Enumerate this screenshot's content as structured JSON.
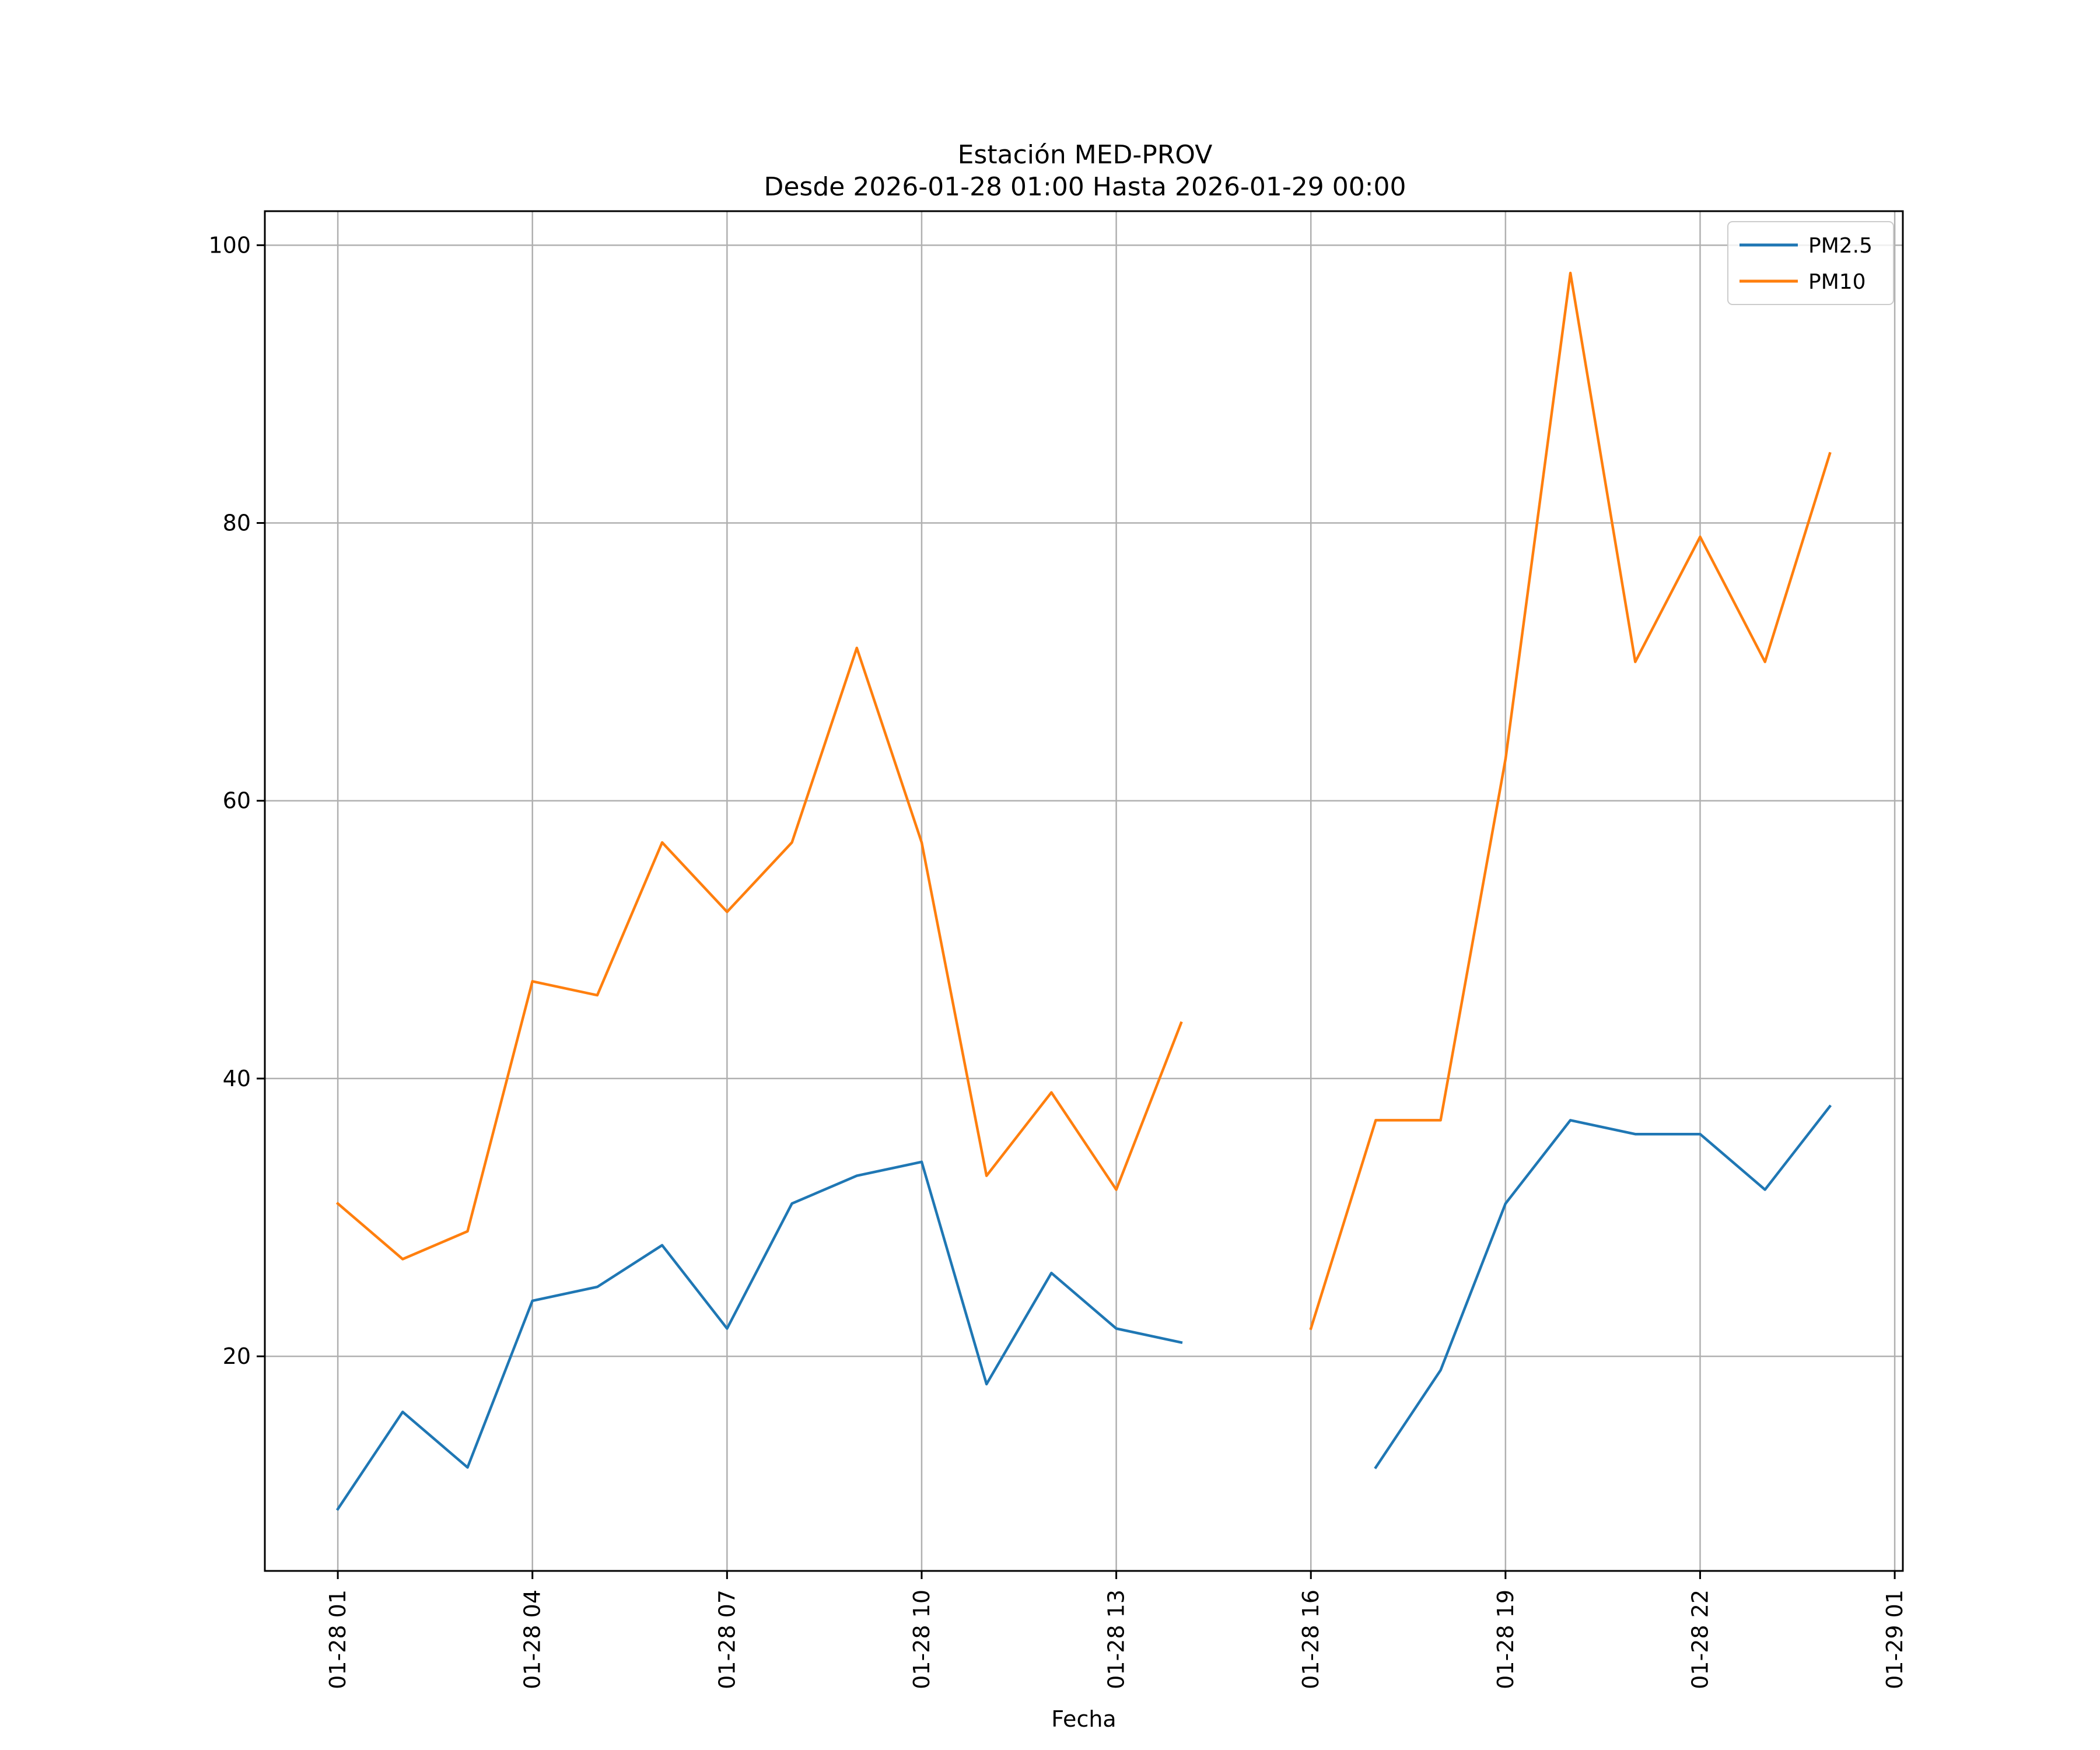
{
  "chart_data": {
    "type": "line",
    "title_line1": "Estación MED-PROV",
    "title_line2": "Desde 2026-01-28 01:00 Hasta 2026-01-29 00:00",
    "xlabel": "Fecha",
    "ylabel": "",
    "x_hours": [
      1,
      2,
      3,
      4,
      5,
      6,
      7,
      8,
      9,
      10,
      11,
      12,
      13,
      14,
      15,
      16,
      17,
      18,
      19,
      20,
      21,
      22,
      23,
      24
    ],
    "xlim": [
      -0.125,
      25.125
    ],
    "ylim": [
      4.55,
      102.45
    ],
    "x_ticks": [
      {
        "hour": 1,
        "label": "01-28 01"
      },
      {
        "hour": 4,
        "label": "01-28 04"
      },
      {
        "hour": 7,
        "label": "01-28 07"
      },
      {
        "hour": 10,
        "label": "01-28 10"
      },
      {
        "hour": 13,
        "label": "01-28 13"
      },
      {
        "hour": 16,
        "label": "01-28 16"
      },
      {
        "hour": 19,
        "label": "01-28 19"
      },
      {
        "hour": 22,
        "label": "01-28 22"
      },
      {
        "hour": 25,
        "label": "01-29 01"
      }
    ],
    "y_ticks": [
      {
        "value": 20,
        "label": "20"
      },
      {
        "value": 40,
        "label": "40"
      },
      {
        "value": 60,
        "label": "60"
      },
      {
        "value": 80,
        "label": "80"
      },
      {
        "value": 100,
        "label": "100"
      }
    ],
    "grid": true,
    "legend_position": "top-right",
    "series": [
      {
        "name": "PM2.5",
        "color": "#1f77b4",
        "values": [
          9,
          16,
          12,
          24,
          25,
          28,
          22,
          31,
          33,
          34,
          18,
          26,
          22,
          21,
          null,
          null,
          12,
          19,
          31,
          37,
          36,
          36,
          32,
          38
        ]
      },
      {
        "name": "PM10",
        "color": "#ff7f0e",
        "values": [
          31,
          27,
          29,
          47,
          46,
          57,
          52,
          57,
          71,
          57,
          33,
          39,
          32,
          44,
          null,
          22,
          37,
          37,
          63,
          98,
          70,
          79,
          70,
          85
        ]
      }
    ]
  }
}
